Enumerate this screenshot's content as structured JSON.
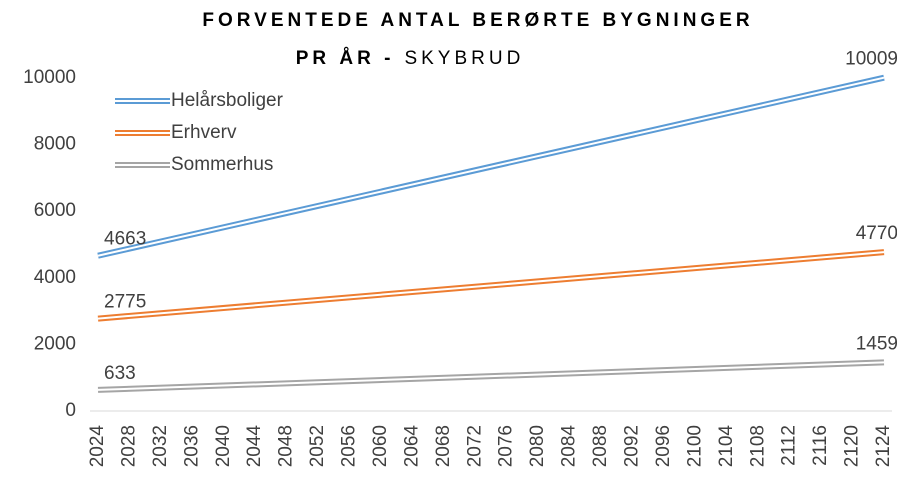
{
  "chart_data": {
    "type": "line",
    "title": {
      "line1": "FORVENTEDE ANTAL BERØRTE BYGNINGER",
      "line2_bold": "PR ÅR -",
      "line2_regular": "SKYBRUD"
    },
    "x": [
      2024,
      2124
    ],
    "series": [
      {
        "name": "Helårsboliger",
        "color": "#5b9bd5",
        "label_color": "#0070c0",
        "values": [
          4663,
          10009
        ]
      },
      {
        "name": "Erhverv",
        "color": "#ed7d31",
        "label_color": "#ed7d31",
        "values": [
          2775,
          4770
        ]
      },
      {
        "name": "Sommerhus",
        "color": "#a5a5a5",
        "label_color": "#8c8c8c",
        "values": [
          633,
          1459
        ]
      }
    ],
    "xlim": [
      2024,
      2124
    ],
    "xticks": [
      2024,
      2028,
      2032,
      2036,
      2040,
      2044,
      2048,
      2052,
      2056,
      2060,
      2064,
      2068,
      2072,
      2076,
      2080,
      2084,
      2088,
      2092,
      2096,
      2100,
      2104,
      2108,
      2112,
      2116,
      2120,
      2124
    ],
    "ylim": [
      0,
      10000
    ],
    "yticks": [
      0,
      2000,
      4000,
      6000,
      8000,
      10000
    ],
    "legend": "top-left"
  }
}
